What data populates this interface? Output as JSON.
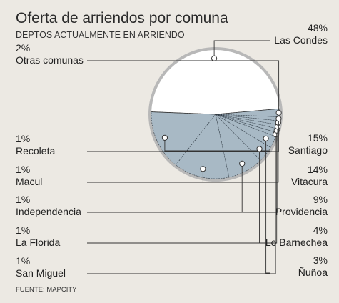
{
  "chart_data": {
    "type": "pie",
    "title": "Oferta de arriendos por comuna",
    "subtitle": "DEPTOS ACTUALMENTE EN ARRIENDO",
    "source": "FUENTE: MAPCITY",
    "slices": [
      {
        "label": "Las Condes",
        "value_label": "48%",
        "value": 48
      },
      {
        "label": "Santiago",
        "value_label": "15%",
        "value": 15
      },
      {
        "label": "Vitacura",
        "value_label": "14%",
        "value": 14
      },
      {
        "label": "Providencia",
        "value_label": "9%",
        "value": 9
      },
      {
        "label": "Lo Barnechea",
        "value_label": "4%",
        "value": 4
      },
      {
        "label": "Ñuñoa",
        "value_label": "3%",
        "value": 3
      },
      {
        "label": "San Miguel",
        "value_label": "1%",
        "value": 1
      },
      {
        "label": "La Florida",
        "value_label": "1%",
        "value": 1
      },
      {
        "label": "Independencia",
        "value_label": "1%",
        "value": 1
      },
      {
        "label": "Macul",
        "value_label": "1%",
        "value": 1
      },
      {
        "label": "Recoleta",
        "value_label": "1%",
        "value": 1
      },
      {
        "label": "Otras comunas",
        "value_label": "2%",
        "value": 2
      }
    ],
    "colors": {
      "background": "#ece9e3",
      "major_slice": "#ffffff",
      "other_slices": "#a8b9c5",
      "rim": "#b8b8b8",
      "lines": "#333333"
    }
  }
}
